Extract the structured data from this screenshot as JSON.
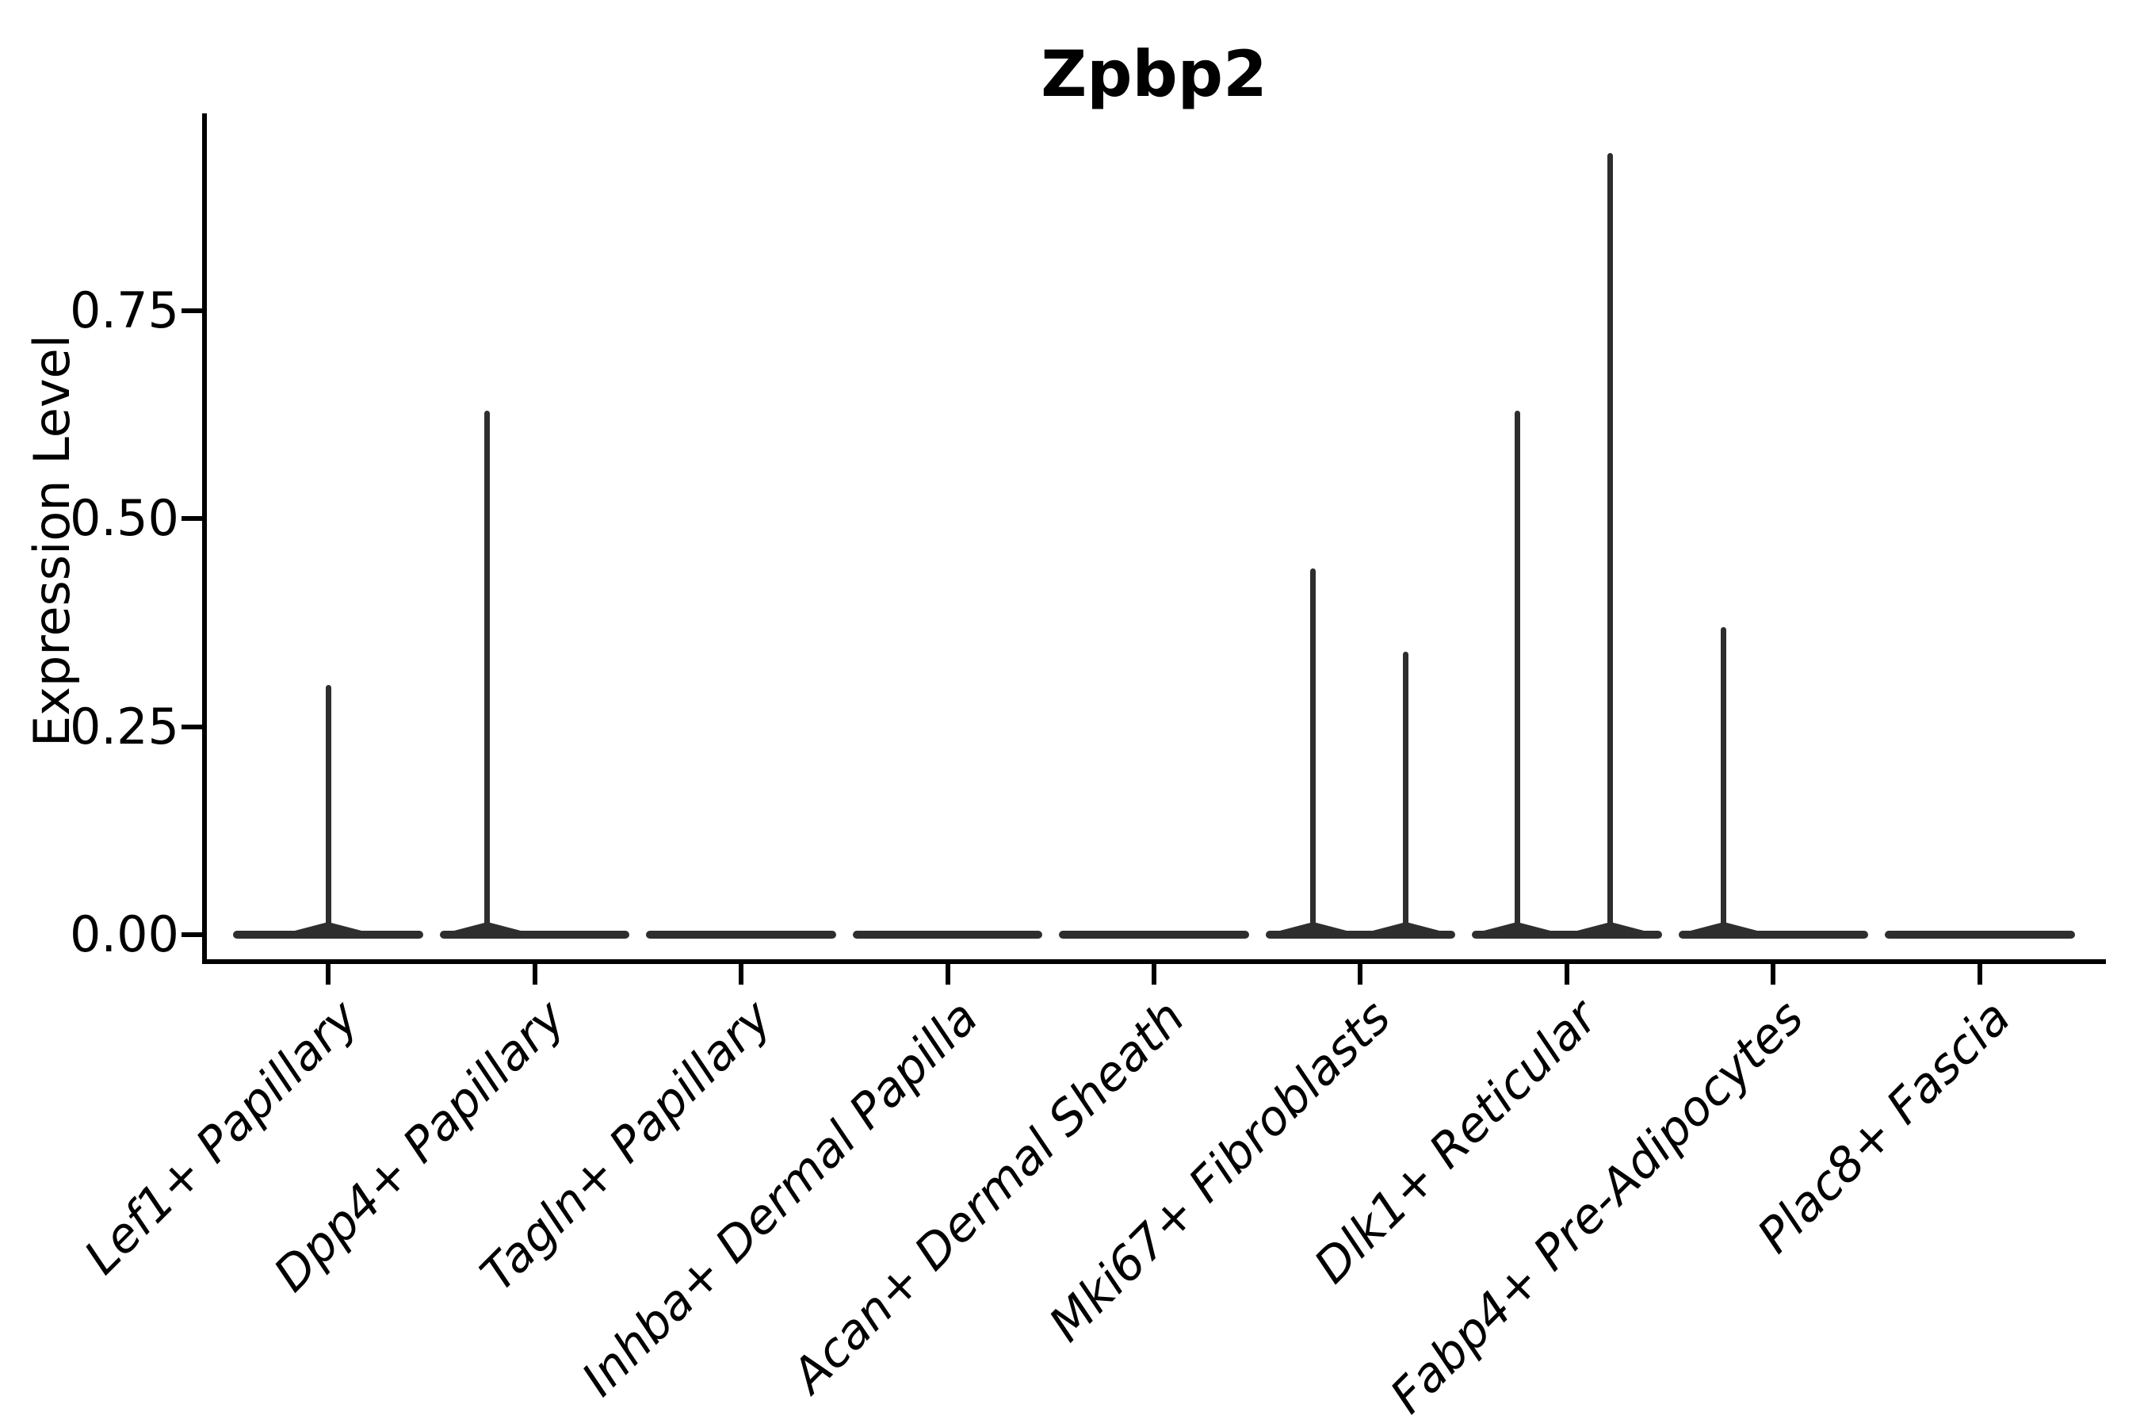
{
  "chart_data": {
    "type": "violin",
    "title": "Zpbp2",
    "xlabel": "",
    "ylabel": "Expression Level",
    "yticks": [
      {
        "value": 0.0,
        "label": "0.00"
      },
      {
        "value": 0.25,
        "label": "0.25"
      },
      {
        "value": 0.5,
        "label": "0.50"
      },
      {
        "value": 0.75,
        "label": "0.75"
      }
    ],
    "ylim": [
      -0.03,
      0.99
    ],
    "grid": false,
    "legend_position": "none",
    "x_tick_angle_deg": 45,
    "colors": {
      "violin_line": "#2e2e2e",
      "axis": "#000000",
      "text": "#000000",
      "background": "#ffffff"
    },
    "categories": [
      "Lef1+ Papillary",
      "Dpp4+ Papillary",
      "Tagln+ Papillary",
      "Inhba+ Dermal Papilla",
      "Acan+ Dermal Sheath",
      "Mki67+ Fibroblasts",
      "Dlk1+ Reticular",
      "Fabp4+ Pre-Adipocytes",
      "Plac8+ Fascia"
    ],
    "violins": [
      {
        "category": "Lef1+ Papillary",
        "baseline_value": 0,
        "baseline_halfwidth_frac": 0.46,
        "spikes": [
          {
            "offset_frac": 0.0,
            "value": 0.3
          }
        ]
      },
      {
        "category": "Dpp4+ Papillary",
        "baseline_value": 0,
        "baseline_halfwidth_frac": 0.46,
        "spikes": [
          {
            "offset_frac": -0.23,
            "value": 0.63
          }
        ]
      },
      {
        "category": "Tagln+ Papillary",
        "baseline_value": 0,
        "baseline_halfwidth_frac": 0.46,
        "spikes": []
      },
      {
        "category": "Inhba+ Dermal Papilla",
        "baseline_value": 0,
        "baseline_halfwidth_frac": 0.46,
        "spikes": []
      },
      {
        "category": "Acan+ Dermal Sheath",
        "baseline_value": 0,
        "baseline_halfwidth_frac": 0.46,
        "spikes": []
      },
      {
        "category": "Mki67+ Fibroblasts",
        "baseline_value": 0,
        "baseline_halfwidth_frac": 0.46,
        "spikes": [
          {
            "offset_frac": -0.23,
            "value": 0.44
          },
          {
            "offset_frac": 0.22,
            "value": 0.34
          }
        ]
      },
      {
        "category": "Dlk1+ Reticular",
        "baseline_value": 0,
        "baseline_halfwidth_frac": 0.46,
        "spikes": [
          {
            "offset_frac": -0.24,
            "value": 0.63
          },
          {
            "offset_frac": 0.21,
            "value": 0.94
          }
        ]
      },
      {
        "category": "Fabp4+ Pre-Adipocytes",
        "baseline_value": 0,
        "baseline_halfwidth_frac": 0.46,
        "spikes": [
          {
            "offset_frac": -0.24,
            "value": 0.37
          }
        ]
      },
      {
        "category": "Plac8+ Fascia",
        "baseline_value": 0,
        "baseline_halfwidth_frac": 0.46,
        "spikes": []
      }
    ]
  }
}
